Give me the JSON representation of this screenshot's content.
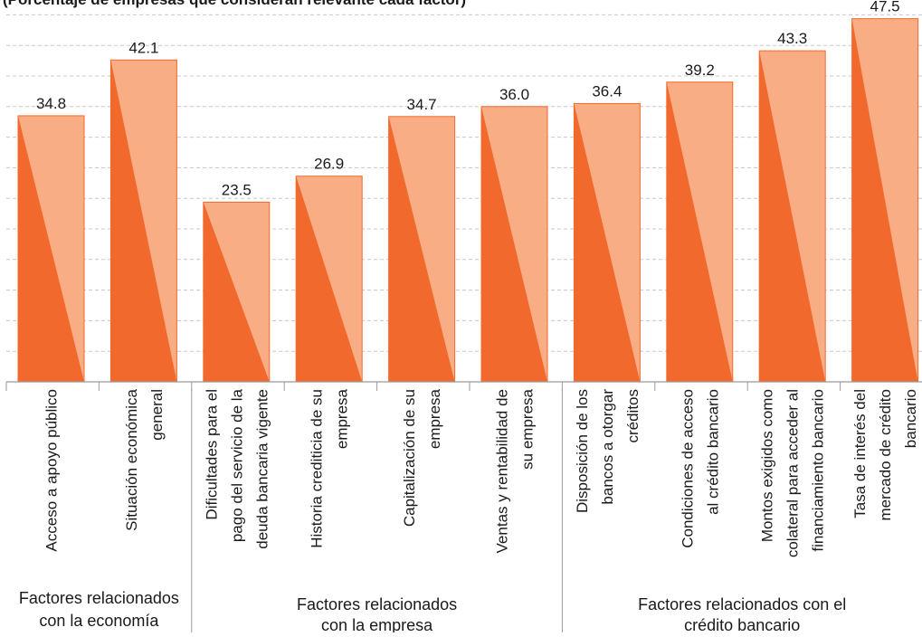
{
  "header_fragment": "(Porcentaje de empresas que consideran relevante cada factor)",
  "chart_data": {
    "type": "bar",
    "title": "",
    "xlabel": "",
    "ylabel": "",
    "ylim": [
      0,
      48
    ],
    "grid": true,
    "categories": [
      "Acceso a apoyo público",
      "Situación económica general",
      "Dificultades para el pago del servicio de la deuda bancaria vigente",
      "Historia crediticia de su empresa",
      "Capitalización de su empresa",
      "Ventas y rentabilidad de su empresa",
      "Disposición de los bancos a otorgar créditos",
      "Condiciones de acceso al crédito bancario",
      "Montos exigidos como colateral para acceder al financiamiento bancario",
      "Tasa de interés del mercado de crédito bancario"
    ],
    "category_lines": [
      [
        "Acceso a apoyo público"
      ],
      [
        "Situación económica",
        "general"
      ],
      [
        "Dificultades para el",
        "pago del servicio de la",
        "deuda bancaria vigente"
      ],
      [
        "Historia crediticia de su",
        "empresa"
      ],
      [
        "Capitalización de su",
        "empresa"
      ],
      [
        "Ventas y rentabilidad de",
        "su empresa"
      ],
      [
        "Disposición de los",
        "bancos a otorgar",
        "créditos"
      ],
      [
        "Condiciones de acceso",
        "al crédito bancario"
      ],
      [
        "Montos exigidos como",
        "colateral para acceder al",
        "financiamiento bancario"
      ],
      [
        "Tasa de interés del",
        "mercado de crédito",
        "bancario"
      ]
    ],
    "values": [
      34.8,
      42.1,
      23.5,
      26.9,
      34.7,
      36.0,
      36.4,
      39.2,
      43.3,
      47.5
    ],
    "value_labels": [
      "34.8",
      "42.1",
      "23.5",
      "26.9",
      "34.7",
      "36.0",
      "36.4",
      "39.2",
      "43.3",
      "47.5"
    ],
    "groups": [
      {
        "lines": [
          "Factores relacionados",
          "con la economía"
        ],
        "start": 0,
        "end": 1
      },
      {
        "lines": [
          "Factores relacionados",
          "con la empresa"
        ],
        "start": 2,
        "end": 5
      },
      {
        "lines": [
          "Factores relacionados con el",
          "crédito bancario"
        ],
        "start": 6,
        "end": 9
      }
    ],
    "colors": {
      "bar_dark": "#f2692d",
      "bar_light": "#f9ad84",
      "grid": "#c8c8c8",
      "axis": "#9a9a9a",
      "text": "#1a1a1a"
    }
  }
}
